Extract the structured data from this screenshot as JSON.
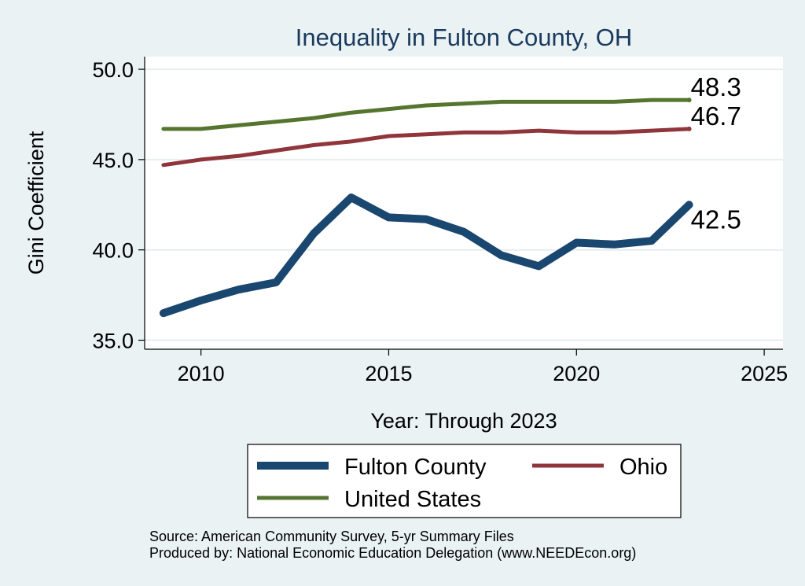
{
  "chart_data": {
    "type": "line",
    "title": "Inequality in Fulton County, OH",
    "xlabel": "Year: Through 2023",
    "ylabel": "Gini Coefficient",
    "xlim": [
      2008.5,
      2025.5
    ],
    "ylim": [
      34.5,
      50.7
    ],
    "xticks": [
      2010,
      2015,
      2020,
      2025
    ],
    "xtick_labels": [
      "2010",
      "2015",
      "2020",
      "2025"
    ],
    "yticks": [
      35,
      40,
      45,
      50
    ],
    "ytick_labels": [
      "35.0",
      "40.0",
      "45.0",
      "50.0"
    ],
    "grid": true,
    "legend_position": "bottom",
    "x": [
      2009,
      2010,
      2011,
      2012,
      2013,
      2014,
      2015,
      2016,
      2017,
      2018,
      2019,
      2020,
      2021,
      2022,
      2023
    ],
    "series": [
      {
        "name": "Fulton County",
        "color": "#1a476f",
        "end_label": "42.5",
        "values": [
          36.5,
          37.2,
          37.8,
          38.2,
          40.9,
          42.9,
          41.8,
          41.7,
          41.0,
          39.7,
          39.1,
          40.4,
          40.3,
          40.5,
          42.5
        ]
      },
      {
        "name": "Ohio",
        "color": "#90353b",
        "end_label": "46.7",
        "values": [
          44.7,
          45.0,
          45.2,
          45.5,
          45.8,
          46.0,
          46.3,
          46.4,
          46.5,
          46.5,
          46.6,
          46.5,
          46.5,
          46.6,
          46.7
        ]
      },
      {
        "name": "United States",
        "color": "#55752f",
        "end_label": "48.3",
        "values": [
          46.7,
          46.7,
          46.9,
          47.1,
          47.3,
          47.6,
          47.8,
          48.0,
          48.1,
          48.2,
          48.2,
          48.2,
          48.2,
          48.3,
          48.3
        ]
      }
    ]
  },
  "footer": {
    "source": "Source: American Community Survey, 5-yr Summary Files",
    "produced_by": "Produced by: National Economic Education Delegation (www.NEEDEcon.org)"
  }
}
